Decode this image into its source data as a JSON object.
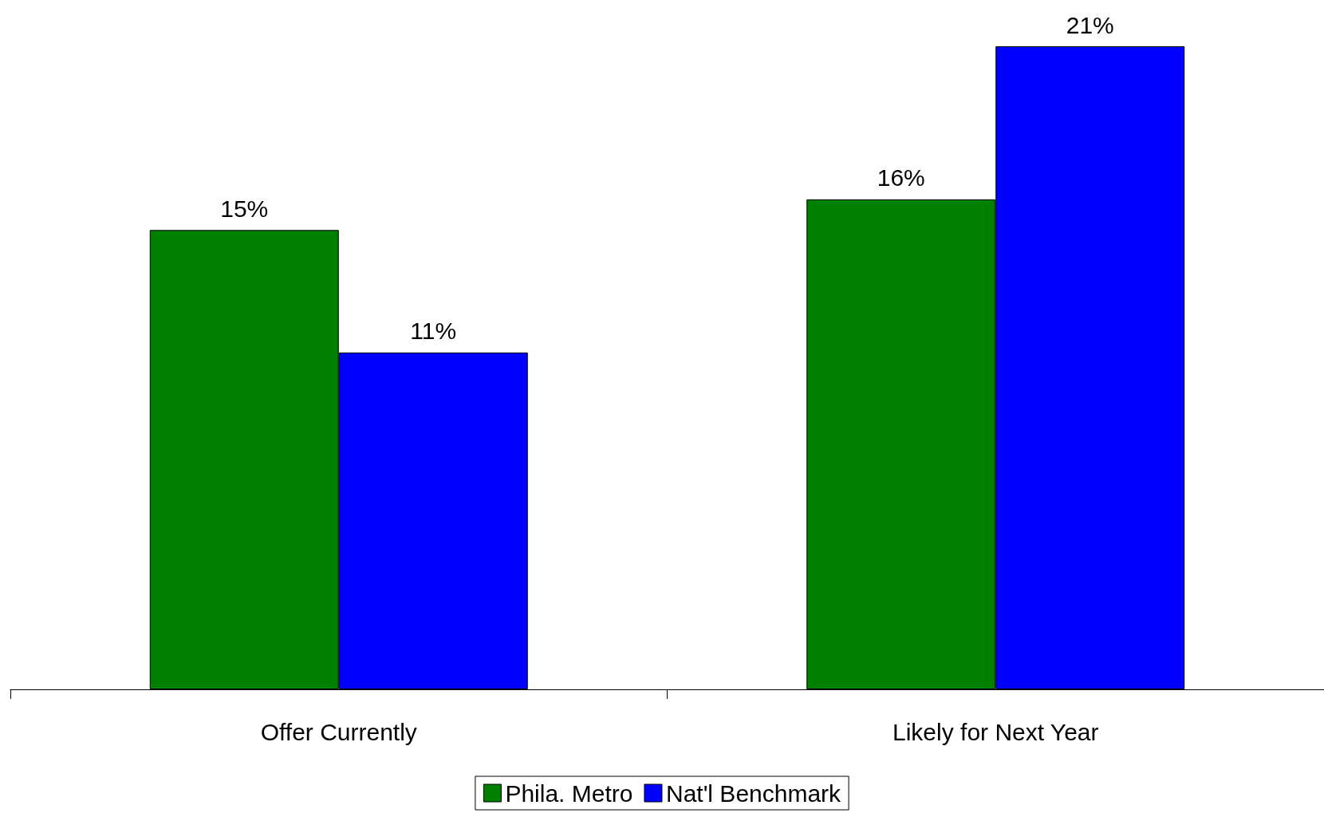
{
  "chart_data": {
    "type": "bar",
    "categories": [
      "Offer Currently",
      "Likely for Next Year"
    ],
    "series": [
      {
        "name": "Phila. Metro",
        "color": "#008000",
        "values": [
          15,
          16
        ],
        "value_labels": [
          "15%",
          "16%"
        ]
      },
      {
        "name": "Nat'l Benchmark",
        "color": "#0000ff",
        "values": [
          11,
          21
        ],
        "value_labels": [
          "11%",
          "21%"
        ]
      }
    ],
    "legend": "bottom"
  }
}
